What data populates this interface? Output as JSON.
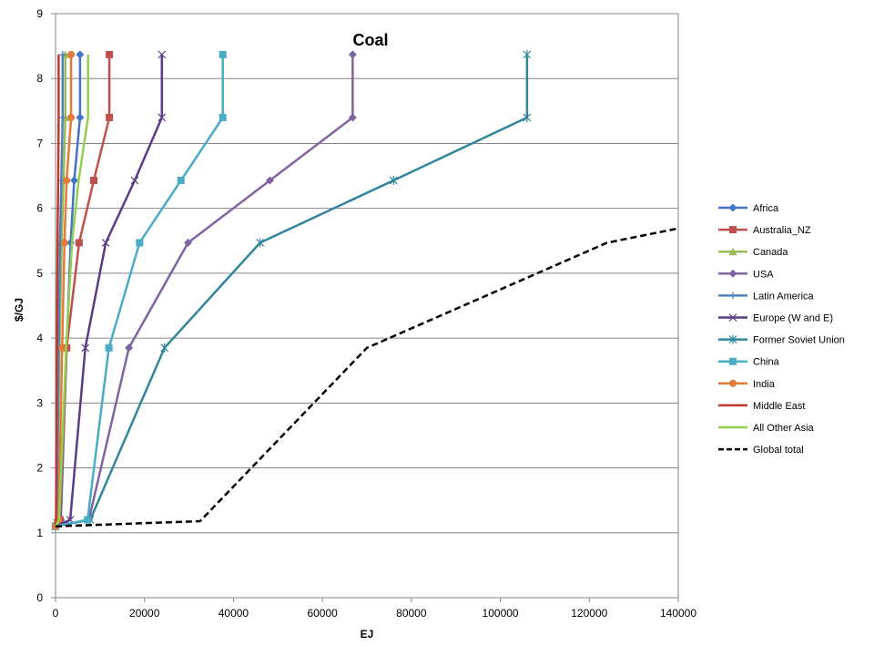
{
  "chart_data": {
    "type": "line",
    "title": "Coal",
    "xlabel": "EJ",
    "ylabel": "$/GJ",
    "xlim": [
      0,
      140000
    ],
    "ylim": [
      0,
      9
    ],
    "x_ticks": [
      "0",
      "20000",
      "40000",
      "60000",
      "80000",
      "100000",
      "120000",
      "140000"
    ],
    "y_ticks": [
      "0",
      "1",
      "2",
      "3",
      "4",
      "5",
      "6",
      "7",
      "8",
      "9"
    ],
    "grid": "horizontal",
    "legend_position": "right",
    "series": [
      {
        "name": "Africa",
        "color": "#4472C4",
        "marker": "diamond",
        "dash": false,
        "points": [
          [
            0,
            1.1
          ],
          [
            1200,
            1.2
          ],
          [
            2500,
            3.85
          ],
          [
            3400,
            5.47
          ],
          [
            4200,
            6.43
          ],
          [
            5500,
            7.4
          ],
          [
            5500,
            8.37
          ]
        ]
      },
      {
        "name": "Australia_NZ",
        "color": "#C0504D",
        "marker": "square",
        "dash": false,
        "points": [
          [
            0,
            1.1
          ],
          [
            1000,
            1.2
          ],
          [
            2500,
            3.85
          ],
          [
            5300,
            5.47
          ],
          [
            8600,
            6.43
          ],
          [
            12100,
            7.4
          ],
          [
            12100,
            8.37
          ]
        ]
      },
      {
        "name": "Canada",
        "color": "#9BBB59",
        "marker": "triangle",
        "dash": false,
        "points": [
          [
            0,
            1.1
          ],
          [
            300,
            1.2
          ],
          [
            900,
            3.85
          ],
          [
            1400,
            5.47
          ],
          [
            1800,
            6.43
          ],
          [
            2200,
            7.4
          ],
          [
            2200,
            8.37
          ]
        ]
      },
      {
        "name": "USA",
        "color": "#8064A2",
        "marker": "diamond",
        "dash": false,
        "points": [
          [
            0,
            1.1
          ],
          [
            7500,
            1.2
          ],
          [
            16500,
            3.85
          ],
          [
            29800,
            5.47
          ],
          [
            48200,
            6.43
          ],
          [
            66800,
            7.4
          ],
          [
            66800,
            8.37
          ]
        ]
      },
      {
        "name": "Latin America",
        "color": "#4F81BD",
        "marker": "plus",
        "dash": false,
        "points": [
          [
            0,
            1.1
          ],
          [
            300,
            1.2
          ],
          [
            700,
            3.85
          ],
          [
            1000,
            5.47
          ],
          [
            1300,
            6.43
          ],
          [
            1600,
            7.4
          ],
          [
            1600,
            8.37
          ]
        ]
      },
      {
        "name": "Europe (W and E)",
        "color": "#5B3C88",
        "marker": "x",
        "dash": false,
        "points": [
          [
            0,
            1.1
          ],
          [
            3300,
            1.2
          ],
          [
            6700,
            3.85
          ],
          [
            11300,
            5.47
          ],
          [
            17800,
            6.43
          ],
          [
            23900,
            7.4
          ],
          [
            23900,
            8.37
          ]
        ]
      },
      {
        "name": "Former Soviet Union",
        "color": "#31859C",
        "marker": "star",
        "dash": false,
        "points": [
          [
            0,
            1.1
          ],
          [
            7800,
            1.2
          ],
          [
            24500,
            3.85
          ],
          [
            46000,
            5.47
          ],
          [
            76000,
            6.43
          ],
          [
            106000,
            7.4
          ],
          [
            106000,
            8.37
          ]
        ]
      },
      {
        "name": "China",
        "color": "#4BACC6",
        "marker": "square",
        "dash": false,
        "points": [
          [
            0,
            1.1
          ],
          [
            7200,
            1.2
          ],
          [
            12000,
            3.85
          ],
          [
            18900,
            5.47
          ],
          [
            28200,
            6.43
          ],
          [
            37600,
            7.4
          ],
          [
            37600,
            8.37
          ]
        ]
      },
      {
        "name": "India",
        "color": "#E07B39",
        "marker": "circle",
        "dash": false,
        "points": [
          [
            0,
            1.1
          ],
          [
            700,
            1.2
          ],
          [
            1500,
            3.85
          ],
          [
            2000,
            5.47
          ],
          [
            2500,
            6.43
          ],
          [
            3500,
            7.4
          ],
          [
            3500,
            8.37
          ]
        ]
      },
      {
        "name": "Middle East",
        "color": "#C0392B",
        "marker": "none",
        "dash": false,
        "points": [
          [
            0,
            1.1
          ],
          [
            100,
            1.2
          ],
          [
            300,
            3.85
          ],
          [
            450,
            5.47
          ],
          [
            600,
            6.43
          ],
          [
            700,
            7.4
          ],
          [
            700,
            8.37
          ]
        ]
      },
      {
        "name": "All Other Asia",
        "color": "#92D050",
        "marker": "none",
        "dash": false,
        "points": [
          [
            0,
            1.1
          ],
          [
            800,
            1.2
          ],
          [
            2400,
            3.85
          ],
          [
            3700,
            5.47
          ],
          [
            5200,
            6.43
          ],
          [
            7300,
            7.4
          ],
          [
            7300,
            8.37
          ]
        ]
      },
      {
        "name": "Global total",
        "color": "#000000",
        "marker": "none",
        "dash": true,
        "points": [
          [
            0,
            1.1
          ],
          [
            32500,
            1.18
          ],
          [
            70000,
            3.85
          ],
          [
            124000,
            5.47
          ],
          [
            140000,
            5.69
          ]
        ]
      }
    ]
  }
}
